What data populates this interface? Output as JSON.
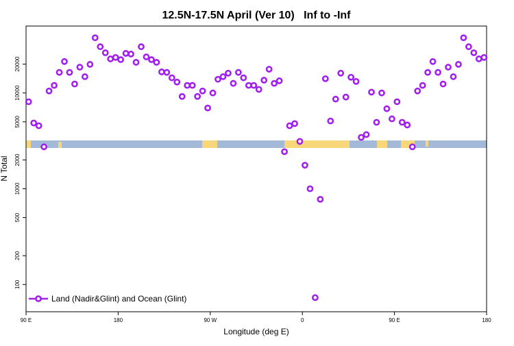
{
  "chart_data": {
    "type": "scatter",
    "title": "12.5N-17.5N April (Ver 10)   Inf to -Inf",
    "x_label": "Longitude (deg E)",
    "y_label": "N Total",
    "log_y": true,
    "legend": "bottom-left",
    "xlim": [
      90,
      540
    ],
    "xticks": [
      {
        "value": 90,
        "label": "90 E"
      },
      180,
      {
        "value": 270,
        "label": "90 W"
      },
      {
        "value": 360,
        "label": "0"
      },
      {
        "value": 450,
        "label": "90 E"
      },
      {
        "value": 540,
        "label": "180"
      }
    ],
    "ylim": [
      52,
      50000
    ],
    "yticks": [
      100,
      200,
      500,
      1000,
      2000,
      5000,
      10000,
      20000
    ],
    "series": [
      {
        "name": "Land (Nadir&Glint) and Ocean (Glint)",
        "color": "#a020f0",
        "x": [
          92.5,
          97.5,
          102.5,
          107.5,
          112.5,
          117.5,
          122.5,
          127.5,
          132.5,
          137.5,
          142.5,
          147.5,
          152.5,
          157.5,
          162.5,
          167.5,
          172.5,
          177.5,
          182.5,
          187.5,
          192.5,
          197.5,
          202.5,
          207.5,
          212.5,
          217.5,
          222.5,
          227.5,
          232.5,
          237.5,
          242.5,
          247.5,
          252.5,
          257.5,
          262.5,
          267.5,
          272.5,
          277.5,
          282.5,
          287.5,
          292.5,
          297.5,
          302.5,
          307.5,
          312.5,
          317.5,
          322.5,
          327.5,
          332.5,
          337.5,
          342.5,
          347.5,
          352.5,
          357.5,
          362.5,
          367.5,
          372.5,
          377.5,
          382.5,
          387.5,
          392.5,
          397.5,
          402.5,
          407.5,
          412.5,
          417.5,
          422.5,
          427.5,
          432.5,
          437.5,
          442.5,
          447.5,
          452.5,
          457.5,
          462.5,
          467.5,
          472.5,
          477.5,
          482.5,
          487.5,
          492.5,
          497.5,
          502.5,
          507.5,
          512.5,
          517.5,
          522.5,
          527.5,
          532.5,
          537.5
        ],
        "values": [
          8100,
          4860,
          4550,
          2740,
          10500,
          12000,
          16400,
          21300,
          16400,
          12400,
          18600,
          14800,
          19900,
          37700,
          30400,
          26300,
          22700,
          23500,
          22300,
          25900,
          25500,
          20900,
          30400,
          23800,
          22300,
          20900,
          16600,
          16400,
          14400,
          13000,
          9200,
          12000,
          12000,
          9200,
          10500,
          6970,
          10000,
          13900,
          14800,
          16100,
          12600,
          16400,
          14400,
          12000,
          12000,
          10900,
          13600,
          17700,
          12600,
          13400,
          2440,
          4550,
          4790,
          3120,
          1760,
          1000,
          73,
          776,
          14100,
          5100,
          8630,
          16100,
          9060,
          14600,
          13200,
          3440,
          3680,
          10200,
          4940,
          10000,
          6850,
          5370,
          8100,
          4940,
          4630,
          2740,
          10500,
          12000,
          16400,
          21300,
          16400,
          12400,
          18600,
          14800,
          19900,
          37700,
          30400,
          26300,
          22700,
          23500
        ]
      }
    ]
  }
}
